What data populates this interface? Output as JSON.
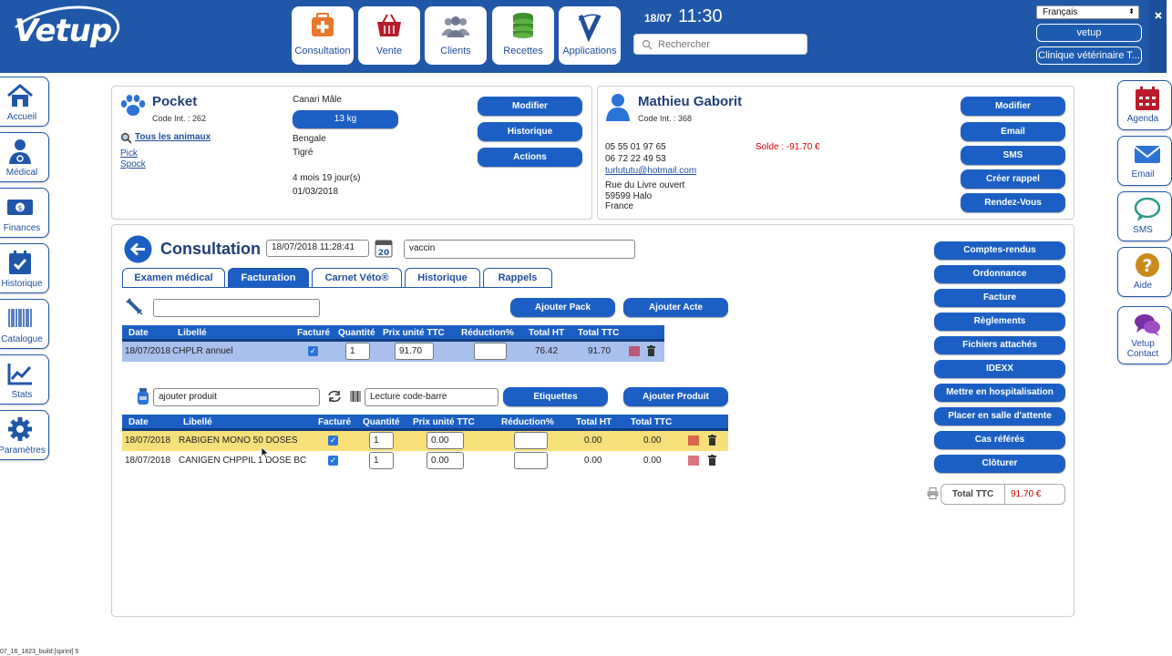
{
  "app": {
    "name": "Vetup"
  },
  "header": {
    "nav": [
      {
        "label": "Consultation",
        "icon": "medical-kit-icon"
      },
      {
        "label": "Vente",
        "icon": "basket-icon"
      },
      {
        "label": "Clients",
        "icon": "people-icon"
      },
      {
        "label": "Recettes",
        "icon": "coins-stack-icon"
      },
      {
        "label": "Applications",
        "icon": "vetup-v-icon"
      }
    ],
    "date": "18/07",
    "time": "11:30",
    "search_placeholder": "Rechercher",
    "language": "Français",
    "user": "vetup",
    "clinic": "Clinique vétérinaire T..."
  },
  "left_sidebar": [
    {
      "label": "Accueil",
      "icon": "house-icon"
    },
    {
      "label": "Médical",
      "icon": "doctor-icon"
    },
    {
      "label": "Finances",
      "icon": "banknote-icon"
    },
    {
      "label": "Historique",
      "icon": "calendar-check-icon"
    },
    {
      "label": "Catalogue",
      "icon": "barcode-icon"
    },
    {
      "label": "Stats",
      "icon": "chart-icon"
    },
    {
      "label": "Paramètres",
      "icon": "gear-icon"
    }
  ],
  "right_sidebar": [
    {
      "label": "Agenda",
      "icon": "calendar-icon"
    },
    {
      "label": "Email",
      "icon": "envelope-icon"
    },
    {
      "label": "SMS",
      "icon": "speech-bubble-icon"
    },
    {
      "label": "Aide",
      "icon": "help-icon"
    },
    {
      "label": "Vetup Contact",
      "label1": "Vetup",
      "label2": "Contact",
      "icon": "chat-bubbles-icon"
    }
  ],
  "animal": {
    "name": "Pocket",
    "code": "Code Int. : 262",
    "all_animals_link": "Tous les animaux",
    "others": [
      "Pick",
      "Spock"
    ],
    "species_sex": "Canari Mâle",
    "weight": "13 kg",
    "breed": "Bengale",
    "color": "Tigré",
    "age": "4 mois 19 jour(s)",
    "birthdate": "01/03/2018",
    "buttons": [
      "Modifier",
      "Historique",
      "Actions"
    ]
  },
  "owner": {
    "name": "Mathieu Gaborit",
    "code": "Code Int. : 368",
    "phone1": "05 55 01 97 65",
    "phone2": "06 72 22 49 53",
    "email": "turlututu@hotmail.com",
    "balance": "Solde : -91.70 €",
    "address1": "Rue du Livre ouvert",
    "address2": "59599 Halo",
    "country": "France",
    "buttons": [
      "Modifier",
      "Email",
      "SMS",
      "Créer rappel",
      "Rendez-Vous"
    ]
  },
  "consultation": {
    "title": "Consultation",
    "datetime": "18/07/2018 11:28:41",
    "calendar_day": "20",
    "reason": "vaccin",
    "tabs": [
      {
        "label": "Examen médical",
        "active": false
      },
      {
        "label": "Facturation",
        "active": true
      },
      {
        "label": "Carnet Véto®",
        "active": false
      },
      {
        "label": "Historique",
        "active": false
      },
      {
        "label": "Rappels",
        "active": false
      }
    ],
    "add_pack_label": "Ajouter Pack",
    "add_act_label": "Ajouter Acte",
    "acts_table": {
      "headers": [
        "Date",
        "Libellé",
        "Facturé",
        "Quantité",
        "Prix unité TTC",
        "Réduction%",
        "Total HT",
        "Total TTC"
      ],
      "rows": [
        {
          "date": "18/07/2018",
          "label": "CHPLR annuel",
          "billed": true,
          "qty": "1",
          "price": "91.70",
          "reduction": "",
          "total_ht": "76.42",
          "total_ttc": "91.70"
        }
      ]
    },
    "product_placeholder": "ajouter produit",
    "barcode_placeholder": "Lecture code-barre",
    "labels_button": "Etiquettes",
    "add_product_label": "Ajouter Produit",
    "products_table": {
      "headers": [
        "Date",
        "Libellé",
        "Facturé",
        "Quantité",
        "Prix unité TTC",
        "Réduction%",
        "Total HT",
        "Total TTC"
      ],
      "rows": [
        {
          "date": "18/07/2018",
          "label": "RABIGEN MONO 50 DOSES",
          "billed": true,
          "qty": "1",
          "price": "0.00",
          "reduction": "",
          "total_ht": "0.00",
          "total_ttc": "0.00",
          "highlighted": true
        },
        {
          "date": "18/07/2018",
          "label": "CANIGEN CHPPIL 1 DOSE BC",
          "billed": true,
          "qty": "1",
          "price": "0.00",
          "reduction": "",
          "total_ht": "0.00",
          "total_ttc": "0.00",
          "highlighted": false
        }
      ]
    },
    "right_actions": [
      "Comptes-rendus",
      "Ordonnance",
      "Facture",
      "Règlements",
      "Fichiers attachés",
      "IDEXX",
      "Mettre en hospitalisation",
      "Placer en salle d'attente",
      "Cas référés",
      "Clôturer"
    ],
    "total_label": "Total TTC",
    "total_value": "91.70 €"
  },
  "build": "07_16_1823_build:[sprint] 5",
  "colors": {
    "primary": "#2057a8",
    "button": "#1c5fc4",
    "row_selected": "#a9c0ec",
    "row_highlight": "#f7e07a",
    "negative": "#cc0000"
  }
}
